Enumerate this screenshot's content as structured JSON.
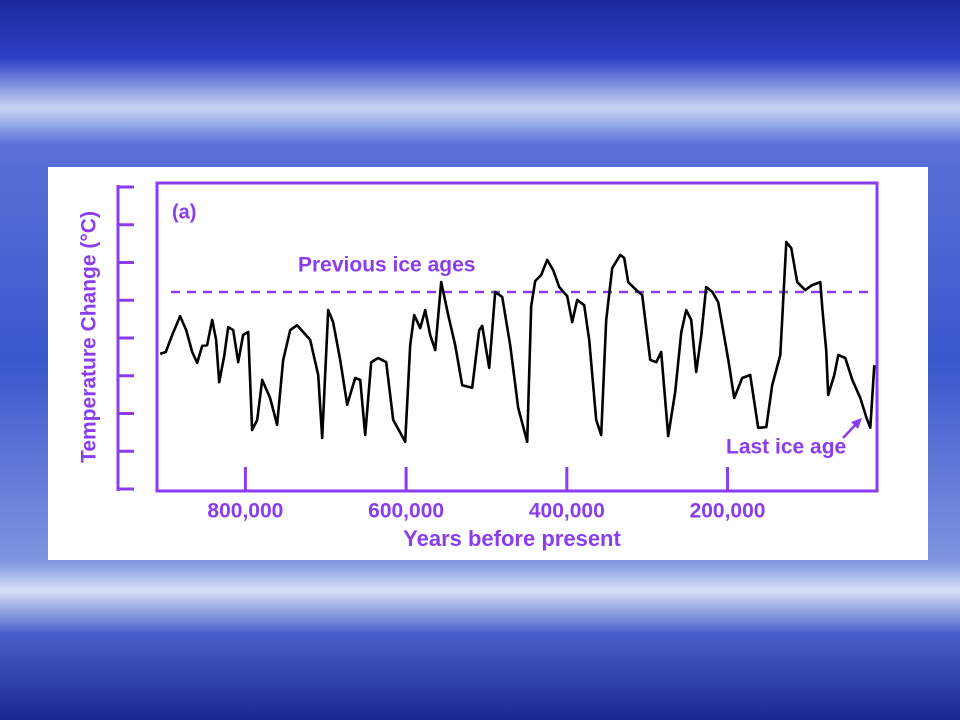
{
  "chart_data": {
    "type": "line",
    "label": "(a)",
    "xlabel": "Years before present",
    "ylabel": "Temperature Change (°C)",
    "annotations": [
      "Previous ice ages",
      "Last ice age"
    ],
    "reference_line": 5.22,
    "color": "#8a3df0",
    "line_color": "#000000",
    "xlim": [
      910000,
      14000
    ],
    "xticks": [
      {
        "value": 800000,
        "label": "800,000"
      },
      {
        "value": 600000,
        "label": "600,000"
      },
      {
        "value": 400000,
        "label": "400,000"
      },
      {
        "value": 200000,
        "label": "200,000"
      }
    ],
    "ylim": [
      0,
      8
    ],
    "yticks": [
      0,
      1,
      2,
      3,
      4,
      5,
      6,
      7,
      8
    ],
    "x": [
      906000,
      899000,
      891100,
      881200,
      873700,
      866200,
      860000,
      853800,
      847600,
      841300,
      836400,
      832600,
      826400,
      821400,
      815200,
      809000,
      802800,
      796500,
      791600,
      785300,
      779100,
      769200,
      760500,
      753000,
      744300,
      735600,
      719400,
      709400,
      704400,
      697000,
      690800,
      682000,
      673300,
      663400,
      657100,
      650900,
      643500,
      634700,
      624800,
      616100,
      601100,
      594900,
      589900,
      582500,
      576200,
      570000,
      563800,
      556300,
      547600,
      538900,
      530200,
      517800,
      509000,
      505300,
      496600,
      489100,
      480400,
      470500,
      460500,
      449300,
      444300,
      439300,
      431900,
      424400,
      416900,
      409500,
      399500,
      393300,
      387100,
      378400,
      372100,
      363400,
      357200,
      351000,
      343500,
      333600,
      328600,
      323600,
      313600,
      306200,
      296200,
      288700,
      282500,
      273800,
      265100,
      257600,
      251400,
      245200,
      239000,
      232700,
      226500,
      219000,
      211600,
      199100,
      191700,
      181700,
      171800,
      161800,
      151800,
      144400,
      134400,
      126900,
      120700,
      113300,
      103300,
      94600,
      84600,
      82100,
      77200,
      74700,
      67200,
      62200,
      53500,
      44800,
      34800,
      27400,
      22400,
      17400
    ],
    "values": [
      3.58,
      3.63,
      4.08,
      4.58,
      4.21,
      3.63,
      3.34,
      3.79,
      3.81,
      4.48,
      3.95,
      2.83,
      3.52,
      4.29,
      4.21,
      3.36,
      4.08,
      4.16,
      1.56,
      1.83,
      2.89,
      2.41,
      1.7,
      3.42,
      4.21,
      4.34,
      3.95,
      3.02,
      1.35,
      4.74,
      4.42,
      3.42,
      2.23,
      2.94,
      2.89,
      1.43,
      3.36,
      3.47,
      3.36,
      1.83,
      1.25,
      3.81,
      4.61,
      4.26,
      4.74,
      4.08,
      3.68,
      5.48,
      4.61,
      3.81,
      2.75,
      2.68,
      4.21,
      4.32,
      3.21,
      5.22,
      5.09,
      3.81,
      2.15,
      1.25,
      4.85,
      5.51,
      5.67,
      6.07,
      5.8,
      5.35,
      5.11,
      4.42,
      5.01,
      4.87,
      3.95,
      1.83,
      1.43,
      4.48,
      5.85,
      6.2,
      6.12,
      5.48,
      5.27,
      5.14,
      3.42,
      3.36,
      3.63,
      1.4,
      2.57,
      4.16,
      4.74,
      4.48,
      3.1,
      4.08,
      5.35,
      5.22,
      4.95,
      3.42,
      2.41,
      2.94,
      3.02,
      1.62,
      1.64,
      2.75,
      3.55,
      6.54,
      6.38,
      5.48,
      5.27,
      5.4,
      5.48,
      4.79,
      3.68,
      2.49,
      3.02,
      3.55,
      3.47,
      2.89,
      2.41,
      1.91,
      1.62,
      3.28
    ]
  }
}
